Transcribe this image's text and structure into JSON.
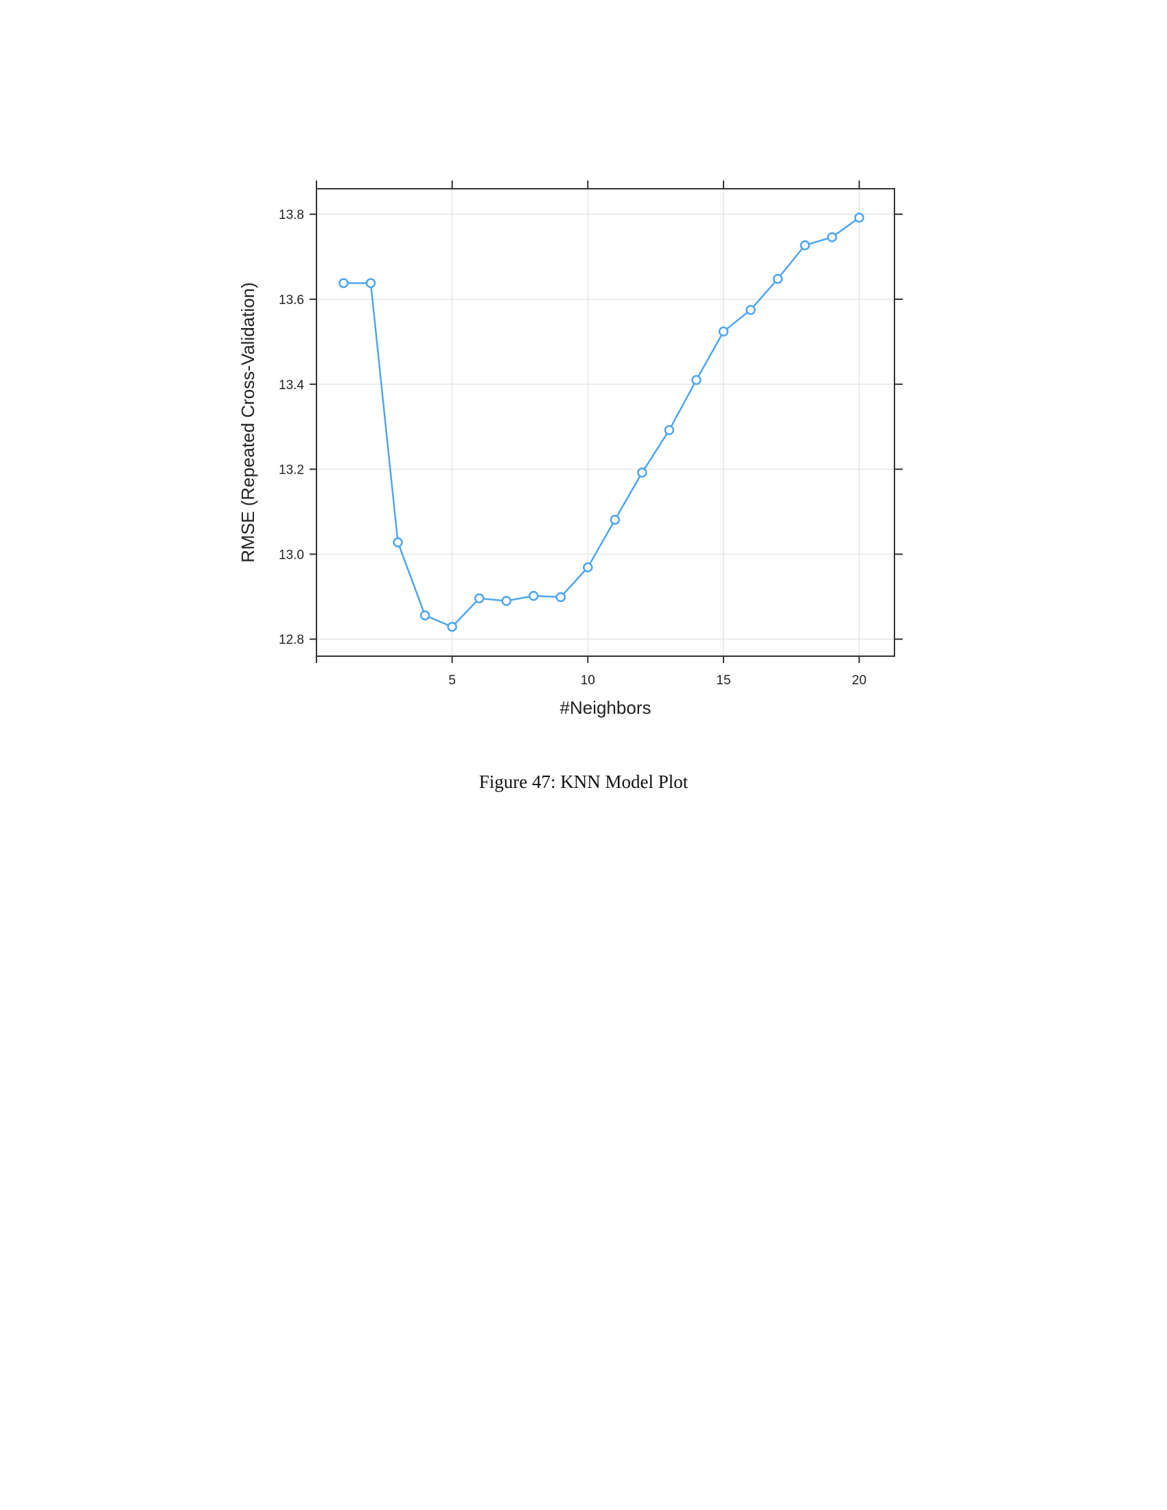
{
  "caption": "Figure 47: KNN Model Plot",
  "chart_data": {
    "type": "line",
    "xlabel": "#Neighbors",
    "ylabel": "RMSE (Repeated Cross-Validation)",
    "xlim": [
      0,
      21.3
    ],
    "ylim": [
      12.76,
      13.86
    ],
    "xticks": [
      5,
      10,
      15,
      20
    ],
    "xticks_unlabeled": [
      0
    ],
    "yticks": [
      12.8,
      13.0,
      13.2,
      13.4,
      13.6,
      13.8
    ],
    "ytick_labels": [
      "12.8",
      "13.0",
      "13.2",
      "13.4",
      "13.6",
      "13.8"
    ],
    "grid": true,
    "marker": "open-circle",
    "color": "#4da6f0",
    "series": [
      {
        "x": [
          1,
          2,
          3,
          4,
          5,
          6,
          7,
          8,
          9,
          10,
          11,
          12,
          13,
          14,
          15,
          16,
          17,
          18,
          19,
          20
        ],
        "values": [
          13.638,
          13.638,
          13.028,
          12.856,
          12.829,
          12.896,
          12.89,
          12.902,
          12.899,
          12.969,
          13.081,
          13.192,
          13.292,
          13.41,
          13.524,
          13.575,
          13.648,
          13.727,
          13.746,
          13.792
        ]
      }
    ]
  }
}
